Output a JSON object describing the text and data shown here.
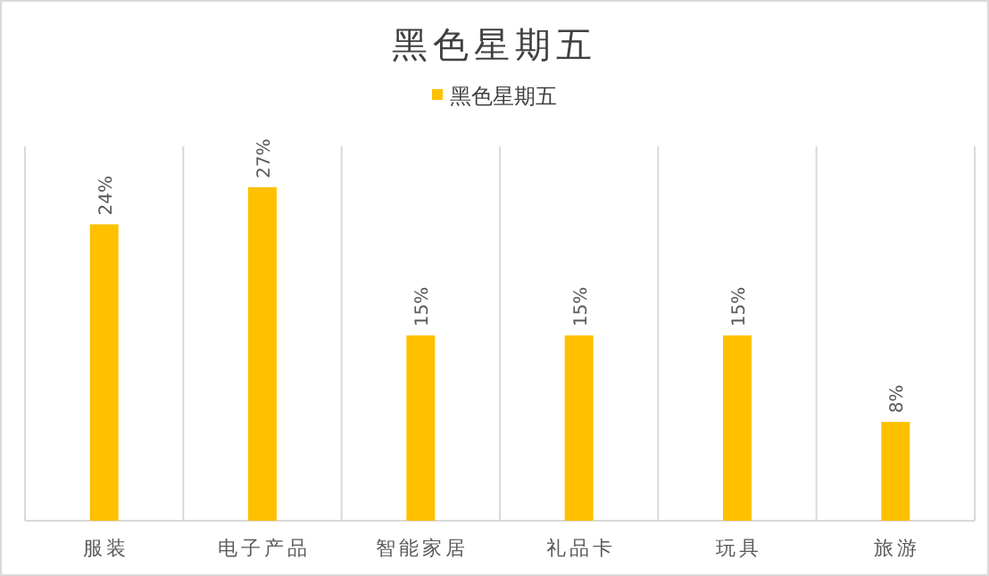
{
  "chart_data": {
    "type": "bar",
    "title": "黑色星期五",
    "categories": [
      "服装",
      "电子产品",
      "智能家居",
      "礼品卡",
      "玩具",
      "旅游"
    ],
    "series": [
      {
        "name": "黑色星期五",
        "color": "#ffc000",
        "values": [
          24,
          27,
          15,
          15,
          15,
          8
        ],
        "value_labels": [
          "24%",
          "27%",
          "15%",
          "15%",
          "15%",
          "8%"
        ]
      }
    ],
    "legend": "top",
    "grid": "x"
  }
}
